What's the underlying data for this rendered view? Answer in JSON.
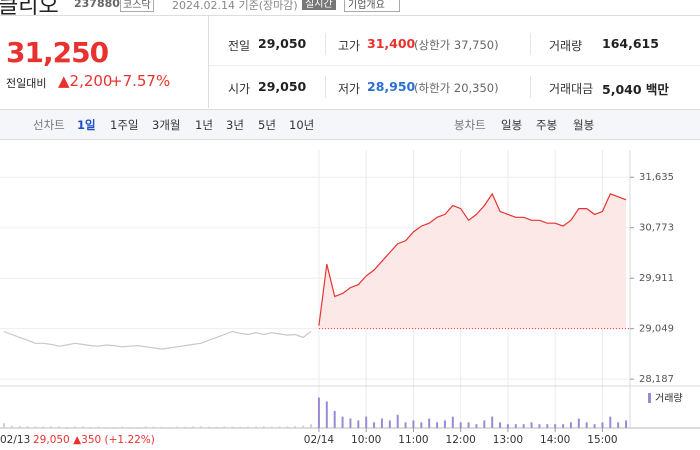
{
  "header": {
    "name": "클리오",
    "code": "237880",
    "market": "코스닥",
    "date": "2024.02.14 기준(장마감)",
    "realtime": "실시간",
    "company_info": "기업개요"
  },
  "price": {
    "current": "31,250",
    "change_label": "전일대비",
    "change": "▲2,200",
    "change_rate": "+7.57%"
  },
  "summary": {
    "rows": [
      [
        {
          "label": "전일",
          "value": "29,050"
        },
        {
          "label": "고가",
          "value": "31,400",
          "note": "(상한가 37,750)"
        },
        {
          "label": "거래량",
          "value": "164,615"
        }
      ],
      [
        {
          "label": "시가",
          "value": "29,050"
        },
        {
          "label": "저가",
          "value": "28,950",
          "note": "(하한가 20,350)"
        },
        {
          "label": "거래대금",
          "value": "5,040 백만"
        }
      ]
    ]
  },
  "tabs": {
    "line_label": "선차트",
    "line": [
      "1일",
      "1주일",
      "3개월",
      "1년",
      "3년",
      "5년",
      "10년"
    ],
    "candle_label": "봉차트",
    "candle": [
      "일봉",
      "주봉",
      "월봉"
    ]
  },
  "info": "29,050 ▲350 (+1.22%)",
  "chart_data": [
    {
      "type": "line",
      "categories": [
        "02/13",
        null,
        null,
        null,
        null,
        null,
        null,
        null,
        null,
        null,
        null,
        null,
        null,
        null,
        null,
        null,
        null,
        null,
        null,
        null,
        null,
        null,
        null,
        null,
        null,
        null,
        null,
        null,
        null,
        null,
        null,
        null,
        null,
        null,
        null,
        null,
        null,
        null,
        null,
        null,
        "02/14",
        null,
        null,
        null,
        null,
        null,
        "10:00",
        null,
        null,
        null,
        null,
        null,
        "11:00",
        null,
        null,
        null,
        null,
        null,
        "12:00",
        null,
        null,
        null,
        null,
        null,
        "13:00",
        null,
        null,
        null,
        null,
        null,
        "14:00",
        null,
        null,
        null,
        null,
        null,
        "15:00",
        null,
        null,
        null
      ],
      "series": [
        {
          "color": "#c8c8c8",
          "values": [
            29000,
            28950,
            28900,
            28850,
            28800,
            28800,
            28780,
            28750,
            28770,
            28800,
            28780,
            28760,
            28750,
            28770,
            28760,
            28740,
            28750,
            28760,
            28740,
            28720,
            28700,
            28720,
            28740,
            28760,
            28780,
            28800,
            28850,
            28900,
            28950,
            29000,
            28970,
            28950,
            28980,
            28950,
            28980,
            28960,
            28940,
            28950,
            28900,
            29000,
            null,
            null,
            null,
            null,
            null,
            null,
            null,
            null,
            null,
            null,
            null,
            null,
            null,
            null,
            null,
            null,
            null,
            null,
            null,
            null,
            null,
            null,
            null,
            null,
            null,
            null,
            null,
            null,
            null,
            null,
            null,
            null,
            null,
            null,
            null,
            null,
            null,
            null,
            null,
            null
          ]
        },
        {
          "color": "#e8322f",
          "fill": "#fde8e8",
          "values": [
            null,
            null,
            null,
            null,
            null,
            null,
            null,
            null,
            null,
            null,
            null,
            null,
            null,
            null,
            null,
            null,
            null,
            null,
            null,
            null,
            null,
            null,
            null,
            null,
            null,
            null,
            null,
            null,
            null,
            null,
            null,
            null,
            null,
            null,
            null,
            null,
            null,
            null,
            null,
            null,
            29100,
            30150,
            29600,
            29650,
            29750,
            29800,
            29950,
            30050,
            30200,
            30350,
            30500,
            30550,
            30700,
            30800,
            30850,
            30950,
            31000,
            31150,
            31100,
            30900,
            31000,
            31150,
            31350,
            31050,
            31000,
            30950,
            30950,
            30900,
            30900,
            30850,
            30850,
            30800,
            30900,
            31100,
            31100,
            31000,
            31050,
            31350,
            31300,
            31250
          ]
        }
      ],
      "baseline": 29050,
      "ylim": [
        28070,
        32100
      ],
      "yticks": [
        {
          "value": 31635,
          "label": "31,635"
        },
        {
          "value": 30773,
          "label": "30,773"
        },
        {
          "value": 29911,
          "label": "29,911"
        },
        {
          "value": 29049,
          "label": "29,049"
        },
        {
          "value": 28187,
          "label": "28,187"
        }
      ],
      "grid": true
    },
    {
      "type": "bar",
      "series": [
        {
          "color": "#cfcfcf",
          "values": [
            2500,
            1200,
            1000,
            900,
            800,
            700,
            900,
            800,
            600,
            700,
            800,
            600,
            700,
            500,
            600,
            700,
            500,
            600,
            800,
            700,
            600,
            500,
            700,
            600,
            800,
            900,
            700,
            600,
            800,
            700,
            600,
            700,
            800,
            900,
            700,
            800,
            900,
            1000,
            1200,
            2000,
            null,
            null,
            null,
            null,
            null,
            null,
            null,
            null,
            null,
            null,
            null,
            null,
            null,
            null,
            null,
            null,
            null,
            null,
            null,
            null,
            null,
            null,
            null,
            null,
            null,
            null,
            null,
            null,
            null,
            null,
            null,
            null,
            null,
            null,
            null,
            null,
            null,
            null,
            null,
            null
          ]
        },
        {
          "name": "거래량",
          "color": "#9a8ad6",
          "values": [
            null,
            null,
            null,
            null,
            null,
            null,
            null,
            null,
            null,
            null,
            null,
            null,
            null,
            null,
            null,
            null,
            null,
            null,
            null,
            null,
            null,
            null,
            null,
            null,
            null,
            null,
            null,
            null,
            null,
            null,
            null,
            null,
            null,
            null,
            null,
            null,
            null,
            null,
            null,
            null,
            16000,
            14000,
            9000,
            6000,
            5000,
            4000,
            6000,
            3000,
            5000,
            4000,
            7000,
            3000,
            4000,
            3000,
            5000,
            3000,
            4000,
            6000,
            3000,
            3000,
            2000,
            4000,
            6000,
            3000,
            2000,
            2000,
            2000,
            3000,
            2000,
            2000,
            2000,
            2000,
            3000,
            5000,
            3000,
            2000,
            3000,
            6000,
            3000,
            4000
          ]
        }
      ],
      "ylim": [
        0,
        20000
      ]
    }
  ]
}
